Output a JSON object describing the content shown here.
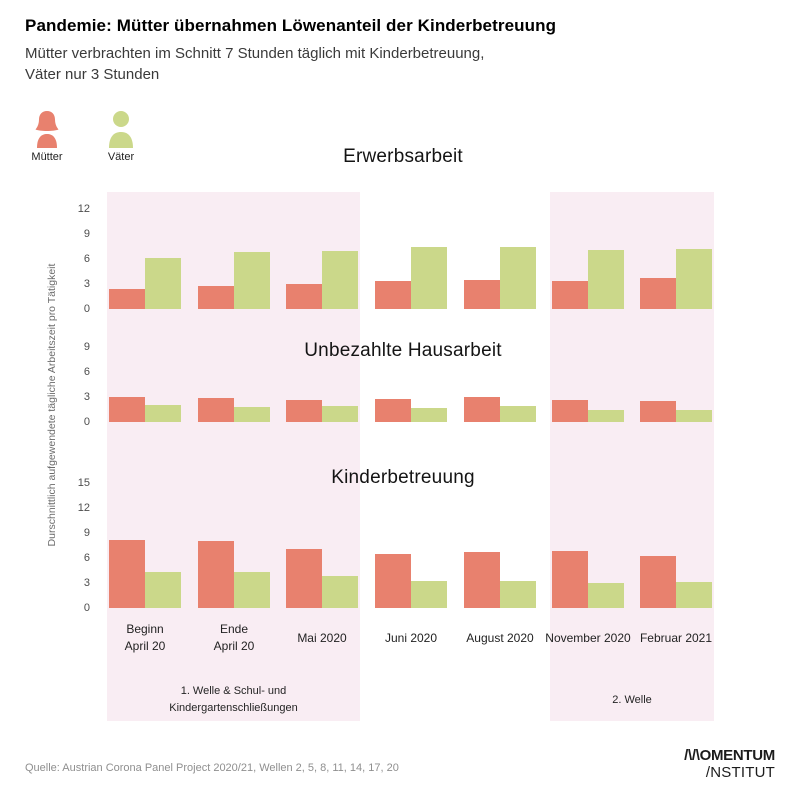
{
  "header": {
    "title": "Pandemie: Mütter übernahmen Löwenanteil der Kinderbetreuung",
    "subtitle_line1": "Mütter verbrachten im Schnitt 7 Stunden täglich mit Kinderbetreuung,",
    "subtitle_line2": "Väter nur 3 Stunden"
  },
  "legend": {
    "mothers": {
      "label": "Mütter",
      "color": "#E8816E"
    },
    "fathers": {
      "label": "Väter",
      "color": "#CBD88A"
    }
  },
  "y_axis_label": "Durschnittlich aufgewendete tägliche Arbeitszeit pro Tätigkeit",
  "chart_data": {
    "type": "bar",
    "unit": "Stunden pro Tag",
    "categories": [
      [
        "Beginn",
        "April 20"
      ],
      [
        "Ende",
        "April 20"
      ],
      [
        "Mai 2020"
      ],
      [
        "Juni 2020"
      ],
      [
        "August 2020"
      ],
      [
        "November 2020"
      ],
      [
        "Februar 2021"
      ]
    ],
    "series": [
      {
        "name": "Mütter",
        "color": "#E8816E"
      },
      {
        "name": "Väter",
        "color": "#CBD88A"
      }
    ],
    "panels": [
      {
        "title": "Erwerbsarbeit",
        "yticks": [
          12,
          9,
          6,
          3,
          0
        ],
        "ylim": [
          0,
          13
        ],
        "values": {
          "Mütter": [
            2.4,
            2.8,
            3.0,
            3.4,
            3.5,
            3.4,
            3.7
          ],
          "Väter": [
            6.1,
            6.9,
            7.0,
            7.4,
            7.4,
            7.1,
            7.2
          ]
        }
      },
      {
        "title": "Unbezahlte Hausarbeit",
        "yticks": [
          9,
          6,
          3,
          0
        ],
        "ylim": [
          0,
          10
        ],
        "values": {
          "Mütter": [
            3.0,
            2.9,
            2.7,
            2.8,
            3.0,
            2.6,
            2.5
          ],
          "Väter": [
            2.0,
            1.8,
            1.9,
            1.7,
            1.9,
            1.5,
            1.5
          ]
        }
      },
      {
        "title": "Kinderbetreuung",
        "yticks": [
          15,
          12,
          9,
          6,
          3,
          0
        ],
        "ylim": [
          0,
          16
        ],
        "values": {
          "Mütter": [
            8.2,
            8.0,
            7.1,
            6.5,
            6.7,
            6.8,
            6.3
          ],
          "Väter": [
            4.3,
            4.3,
            3.9,
            3.2,
            3.2,
            3.0,
            3.1
          ]
        }
      }
    ],
    "highlight_bands": [
      {
        "label_lines": [
          "1. Welle & Schul- und",
          "Kindergartenschließungen"
        ],
        "from_category": 0,
        "to_category": 2
      },
      {
        "label_lines": [
          "2. Welle"
        ],
        "from_category": 5,
        "to_category": 6
      }
    ],
    "background_color": "#F9EDF3",
    "grid": false,
    "legend_position": "top-left"
  },
  "footer": {
    "source": "Quelle: Austrian Corona Panel Project 2020/21, Wellen 2, 5, 8, 11, 14, 17, 20",
    "logo_line1": "/\\/\\OMENTUM",
    "logo_line2": "/NSTITUT"
  }
}
